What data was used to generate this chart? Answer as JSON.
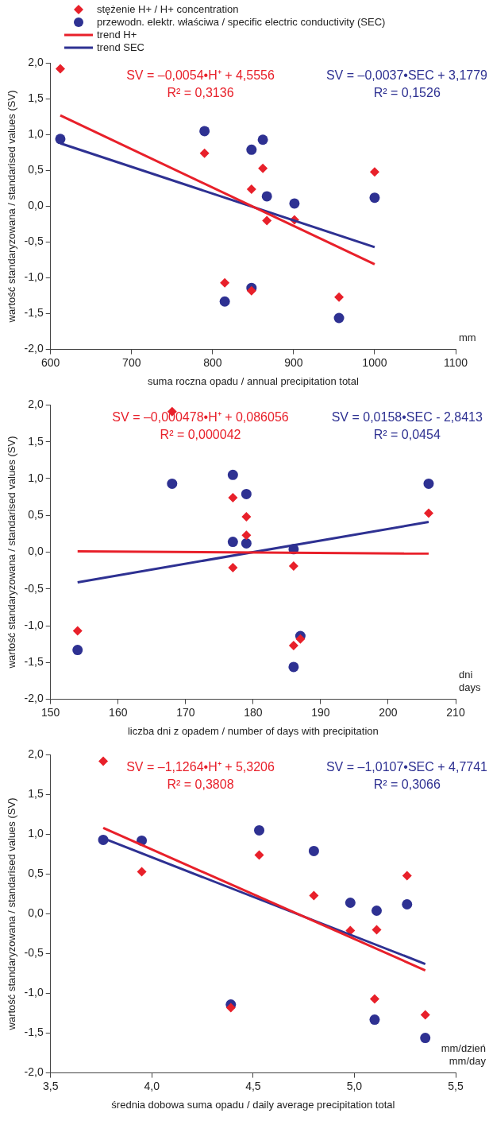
{
  "chart_data": [
    {
      "type": "scatter",
      "xlabel": "suma roczna opadu / annual precipitation total",
      "ylabel": "wartość standaryzowana / standarised values (SV)",
      "xlim": [
        600,
        1100
      ],
      "xticks": [
        600,
        700,
        800,
        900,
        1000,
        1100
      ],
      "ylim": [
        -2,
        2
      ],
      "yticks": [
        {
          "value": -2,
          "label": "-2,0"
        },
        {
          "value": -1.5,
          "label": "-1,5"
        },
        {
          "value": -1,
          "label": "-1,0"
        },
        {
          "value": -0.5,
          "label": "-0,5"
        },
        {
          "value": 0,
          "label": "0,0"
        },
        {
          "value": 0.5,
          "label": "0,5"
        },
        {
          "value": 1,
          "label": "1,0"
        },
        {
          "value": 1.5,
          "label": "1,5"
        },
        {
          "value": 2,
          "label": "2,0"
        }
      ],
      "grid": false,
      "legend": "top",
      "annotations": [
        "SV = –0,0054•H⁺ + 4,5556",
        "R² = 0,3136",
        "SV = –0,0037•SEC + 3,1779",
        "R² = 0,1526",
        "mm"
      ],
      "series": [
        {
          "name": "stężenie H+ / H+ concentration",
          "marker": "diamond",
          "color": "#e8202a",
          "x": [
            612,
            790,
            815,
            848,
            848,
            862,
            867,
            901,
            956,
            1000
          ],
          "values": [
            1.92,
            0.74,
            -1.07,
            0.24,
            -1.18,
            0.53,
            -0.2,
            -0.19,
            -1.27,
            0.48
          ]
        },
        {
          "name": "przewodn. elektr. właściwa / specific electric conductivity (SEC)",
          "marker": "circle",
          "color": "#2e3192",
          "x": [
            612,
            790,
            815,
            848,
            848,
            862,
            867,
            901,
            956,
            1000
          ],
          "values": [
            0.94,
            1.05,
            -1.33,
            0.79,
            -1.14,
            0.93,
            0.14,
            0.04,
            -1.56,
            0.12
          ]
        },
        {
          "name": "trend H+",
          "type": "line",
          "marker": "none",
          "color": "#e8202a",
          "x": [
            612,
            1000
          ],
          "values": [
            1.27,
            -0.81
          ]
        },
        {
          "name": "trend SEC",
          "type": "line",
          "marker": "none",
          "color": "#2e3192",
          "x": [
            612,
            1000
          ],
          "values": [
            0.88,
            -0.57
          ]
        }
      ]
    },
    {
      "type": "scatter",
      "xlabel": "liczba dni z opadem / number of days with precipitation",
      "ylabel": "wartość standaryzowana / standarised values (SV)",
      "xlim": [
        150,
        210
      ],
      "xticks": [
        150,
        160,
        170,
        180,
        190,
        200,
        210
      ],
      "ylim": [
        -2,
        2
      ],
      "yticks": [
        {
          "value": -2,
          "label": "-2,0"
        },
        {
          "value": -1.5,
          "label": "-1,5"
        },
        {
          "value": -1,
          "label": "-1,0"
        },
        {
          "value": -0.5,
          "label": "-0,5"
        },
        {
          "value": 0,
          "label": "0,0"
        },
        {
          "value": 0.5,
          "label": "0,5"
        },
        {
          "value": 1,
          "label": "1,0"
        },
        {
          "value": 1.5,
          "label": "1,5"
        },
        {
          "value": 2,
          "label": "2,0"
        }
      ],
      "grid": false,
      "annotations": [
        "SV = –0,000478•H⁺ + 0,086056",
        "R² = 0,000042",
        "SV = 0,0158•SEC - 2,8413",
        "R² = 0,0454",
        "dni",
        "days"
      ],
      "series": [
        {
          "marker": "diamond",
          "color": "#e8202a",
          "x": [
            154,
            168,
            177,
            177,
            179,
            179,
            186,
            186,
            187,
            206
          ],
          "values": [
            -1.07,
            1.91,
            0.74,
            -0.21,
            0.48,
            0.23,
            -0.19,
            -1.27,
            -1.18,
            0.53
          ]
        },
        {
          "marker": "circle",
          "color": "#2e3192",
          "x": [
            154,
            168,
            177,
            177,
            179,
            179,
            186,
            186,
            187,
            206
          ],
          "values": [
            -1.33,
            0.93,
            1.05,
            0.14,
            0.79,
            0.12,
            0.04,
            -1.56,
            -1.14,
            0.93
          ]
        },
        {
          "type": "line",
          "marker": "none",
          "color": "#e8202a",
          "x": [
            154,
            206
          ],
          "values": [
            0.01,
            -0.02
          ]
        },
        {
          "type": "line",
          "marker": "none",
          "color": "#2e3192",
          "x": [
            154,
            206
          ],
          "values": [
            -0.41,
            0.41
          ]
        }
      ]
    },
    {
      "type": "scatter",
      "xlabel": "średnia dobowa suma opadu / daily average precipitation total",
      "ylabel": "wartość standaryzowana / standarised values (SV)",
      "xlim": [
        3.5,
        5.5
      ],
      "xticks": [
        {
          "value": 3.5,
          "label": "3,5"
        },
        {
          "value": 4,
          "label": "4,0"
        },
        {
          "value": 4.5,
          "label": "4,5"
        },
        {
          "value": 5,
          "label": "5,0"
        },
        {
          "value": 5.5,
          "label": "5,5"
        }
      ],
      "ylim": [
        -2,
        2
      ],
      "yticks": [
        {
          "value": -2,
          "label": "-2,0"
        },
        {
          "value": -1.5,
          "label": "-1,5"
        },
        {
          "value": -1,
          "label": "-1,0"
        },
        {
          "value": -0.5,
          "label": "-0,5"
        },
        {
          "value": 0,
          "label": "0,0"
        },
        {
          "value": 0.5,
          "label": "0,5"
        },
        {
          "value": 1,
          "label": "1,0"
        },
        {
          "value": 1.5,
          "label": "1,5"
        },
        {
          "value": 2,
          "label": "2,0"
        }
      ],
      "grid": false,
      "annotations": [
        "SV = –1,1264•H⁺ + 5,3206",
        "R² = 0,3808",
        "SV = –1,0107•SEC + 4,7741",
        "R² = 0,3066",
        "mm/dzień",
        "mm/day"
      ],
      "series": [
        {
          "marker": "diamond",
          "color": "#e8202a",
          "x": [
            3.76,
            3.95,
            4.39,
            4.53,
            4.8,
            4.98,
            5.1,
            5.11,
            5.26,
            5.35
          ],
          "values": [
            1.92,
            0.53,
            -1.18,
            0.74,
            0.23,
            -0.21,
            -1.07,
            -0.2,
            0.48,
            -1.27
          ]
        },
        {
          "marker": "circle",
          "color": "#2e3192",
          "x": [
            3.76,
            3.95,
            4.39,
            4.53,
            4.8,
            4.98,
            5.1,
            5.11,
            5.26,
            5.35
          ],
          "values": [
            0.93,
            0.92,
            -1.14,
            1.05,
            0.79,
            0.14,
            -1.33,
            0.04,
            0.12,
            -1.56
          ]
        },
        {
          "type": "line",
          "marker": "none",
          "color": "#e8202a",
          "x": [
            3.76,
            5.35
          ],
          "values": [
            1.08,
            -0.71
          ]
        },
        {
          "type": "line",
          "marker": "none",
          "color": "#2e3192",
          "x": [
            3.76,
            5.35
          ],
          "values": [
            0.95,
            -0.63
          ]
        }
      ]
    }
  ]
}
